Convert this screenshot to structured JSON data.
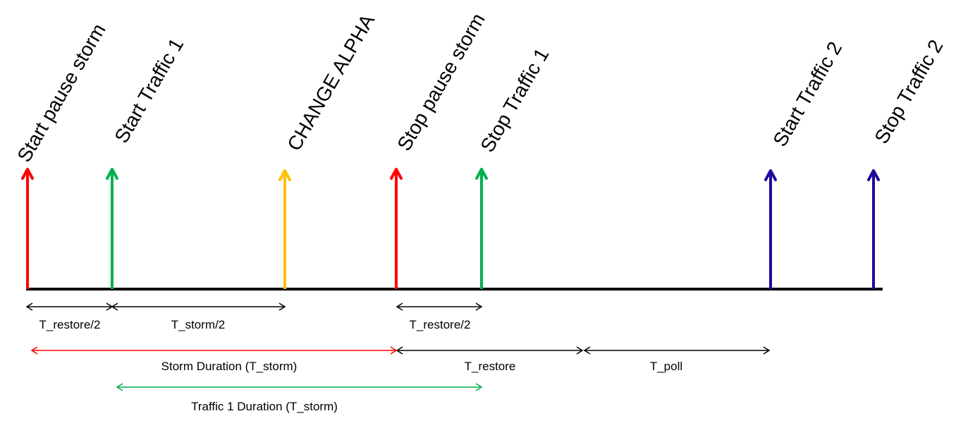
{
  "events": [
    {
      "id": "start-pause-storm",
      "label": "Start pause storm",
      "color": "#ff0000"
    },
    {
      "id": "start-traffic-1",
      "label": "Start Traffic 1",
      "color": "#00b050"
    },
    {
      "id": "change-alpha",
      "label": "CHANGE ALPHA",
      "color": "#ffc000"
    },
    {
      "id": "stop-pause-storm",
      "label": "Stop pause storm",
      "color": "#ff0000"
    },
    {
      "id": "stop-traffic-1",
      "label": "Stop Traffic 1",
      "color": "#00b050"
    },
    {
      "id": "start-traffic-2",
      "label": "Start Traffic 2",
      "color": "#1f0a9e"
    },
    {
      "id": "stop-traffic-2",
      "label": "Stop Traffic 2",
      "color": "#1f0a9e"
    }
  ],
  "intervals": [
    {
      "id": "t-restore-half-1",
      "label": "T_restore/2",
      "color": "#000000"
    },
    {
      "id": "t-storm-half",
      "label": "T_storm/2",
      "color": "#000000"
    },
    {
      "id": "t-restore-half-2",
      "label": "T_restore/2",
      "color": "#000000"
    },
    {
      "id": "storm-duration",
      "label": "Storm Duration (T_storm)",
      "color": "#ff0000"
    },
    {
      "id": "t-restore",
      "label": "T_restore",
      "color": "#000000"
    },
    {
      "id": "t-poll",
      "label": "T_poll",
      "color": "#000000"
    },
    {
      "id": "traffic-1-duration",
      "label": "Traffic 1 Duration (T_storm)",
      "color": "#00b050"
    }
  ]
}
